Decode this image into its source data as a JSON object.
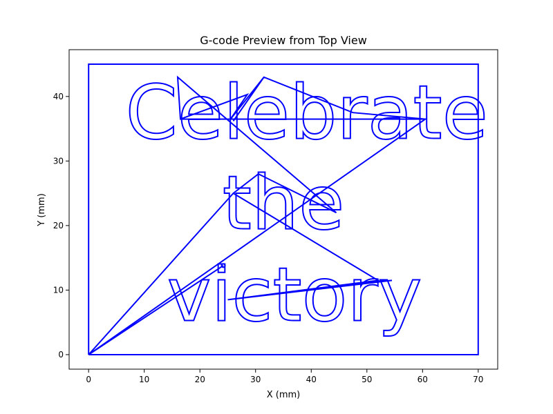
{
  "chart_data": {
    "type": "line",
    "title": "G-code Preview from Top View",
    "xlabel": "X (mm)",
    "ylabel": "Y (mm)",
    "xlim": [
      -3.5,
      73.5
    ],
    "ylim": [
      -2.25,
      47.25
    ],
    "x_ticks": [
      0,
      10,
      20,
      30,
      40,
      50,
      60,
      70
    ],
    "y_ticks": [
      0,
      10,
      20,
      30,
      40
    ],
    "grid": false,
    "line_color": "#0000ff",
    "series": [
      {
        "role": "border",
        "points": [
          [
            0,
            0
          ],
          [
            0,
            45
          ],
          [
            70,
            45
          ],
          [
            70,
            0
          ],
          [
            0,
            0
          ]
        ]
      },
      {
        "role": "text",
        "text_lines": [
          {
            "text": "Celebrate",
            "x_center": 39.2,
            "baseline": 33.5,
            "size": 11.5
          },
          {
            "text": "the",
            "x_center": 35.0,
            "baseline": 19.5,
            "size": 11.5
          },
          {
            "text": "victory",
            "x_center": 37.0,
            "baseline": 5.3,
            "size": 11.5
          }
        ]
      },
      {
        "role": "travel",
        "points": [
          [
            0,
            0
          ],
          [
            24.2,
            13.8
          ],
          [
            0,
            0
          ],
          [
            60.5,
            36.5
          ],
          [
            16.5,
            36.5
          ],
          [
            28.5,
            40.3
          ],
          [
            25.5,
            36.5
          ],
          [
            31.5,
            43.0
          ],
          [
            26.0,
            36.2
          ],
          [
            31.5,
            43.0
          ],
          [
            47.5,
            37.5
          ],
          [
            60.5,
            36.5
          ],
          [
            16.5,
            36.5
          ],
          [
            16.0,
            43.0
          ],
          [
            44.5,
            22.0
          ],
          [
            30.5,
            28.0
          ],
          [
            26.0,
            25.0
          ],
          [
            52.0,
            11.5
          ],
          [
            25.0,
            8.5
          ],
          [
            54.5,
            11.5
          ],
          [
            47.5,
            11.0
          ],
          [
            52.0,
            11.5
          ],
          [
            26.0,
            25.0
          ],
          [
            0,
            0
          ]
        ]
      }
    ]
  }
}
